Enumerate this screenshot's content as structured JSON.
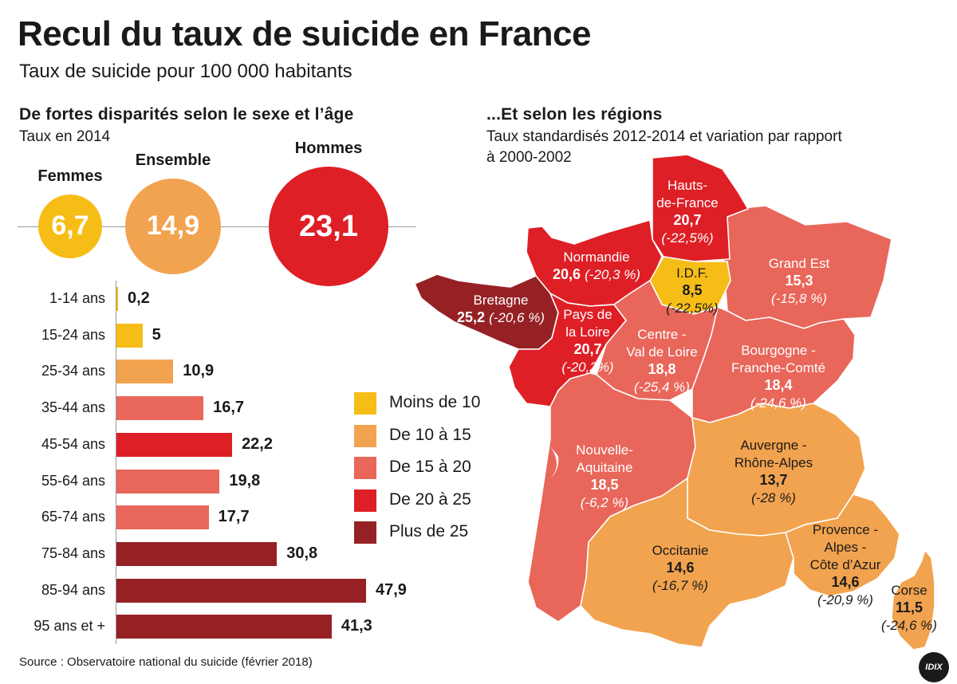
{
  "title": "Recul du taux de suicide en France",
  "subtitle": "Taux de suicide pour 100 000 habitants",
  "left_section": {
    "title": "De fortes disparités selon le sexe et l’âge",
    "subtitle": "Taux en 2014"
  },
  "right_section": {
    "title": "...Et selon les régions",
    "subtitle_line1": "Taux standardisés 2012-2014 et variation par rapport",
    "subtitle_line2": "à 2000-2002"
  },
  "source": "Source : Observatoire national du suicide (février 2018)",
  "logo_text": "IDIX",
  "colors": {
    "moins_10": "#f7bd17",
    "de_10_15": "#f2a34f",
    "de_15_20": "#e8665a",
    "de_20_25": "#de1f26",
    "plus_25": "#962124"
  },
  "legend": [
    {
      "label": "Moins de 10",
      "color": "#f7bd17"
    },
    {
      "label": "De 10 à 15",
      "color": "#f2a34f"
    },
    {
      "label": "De 15 à 20",
      "color": "#e8665a"
    },
    {
      "label": "De 20 à 25",
      "color": "#de1f26"
    },
    {
      "label": "Plus de 25",
      "color": "#962124"
    }
  ],
  "chart_data": [
    {
      "type": "bubble",
      "categories": [
        "Femmes",
        "Ensemble",
        "Hommes"
      ],
      "values": [
        6.7,
        14.9,
        23.1
      ],
      "labels": [
        "6,7",
        "14,9",
        "23,1"
      ],
      "colors": [
        "#f7bd17",
        "#f2a34f",
        "#de1f26"
      ]
    },
    {
      "type": "bar",
      "orientation": "horizontal",
      "categories": [
        "1-14 ans",
        "15-24 ans",
        "25-34 ans",
        "35-44 ans",
        "45-54 ans",
        "55-64 ans",
        "65-74 ans",
        "75-84 ans",
        "85-94 ans",
        "95 ans et +"
      ],
      "values": [
        0.2,
        5,
        10.9,
        16.7,
        22.2,
        19.8,
        17.7,
        30.8,
        47.9,
        41.3
      ],
      "labels": [
        "0,2",
        "5",
        "10,9",
        "16,7",
        "22,2",
        "19,8",
        "17,7",
        "30,8",
        "47,9",
        "41,3"
      ],
      "colors": [
        "#f7bd17",
        "#f7bd17",
        "#f2a34f",
        "#e8665a",
        "#de1f26",
        "#e8665a",
        "#e8665a",
        "#962124",
        "#962124",
        "#962124"
      ]
    },
    {
      "type": "choropleth",
      "regions": [
        {
          "name_lines": [
            "Hauts-",
            "de-France"
          ],
          "rate": 20.7,
          "rate_label": "20,7",
          "variation_label": "(-22,5%)",
          "color": "#de1f26"
        },
        {
          "name_lines": [
            "Normandie"
          ],
          "rate": 20.6,
          "rate_label": "20,6",
          "variation_label": "(-20,3 %)",
          "color": "#de1f26"
        },
        {
          "name_lines": [
            "I.D.F."
          ],
          "rate": 8.5,
          "rate_label": "8,5",
          "variation_label": "(-22,5%)",
          "color": "#f7bd17"
        },
        {
          "name_lines": [
            "Grand Est"
          ],
          "rate": 15.3,
          "rate_label": "15,3",
          "variation_label": "(-15,8 %)",
          "color": "#e8665a"
        },
        {
          "name_lines": [
            "Bretagne"
          ],
          "rate": 25.2,
          "rate_label": "25,2",
          "variation_label": "(-20,6 %)",
          "color": "#962124"
        },
        {
          "name_lines": [
            "Pays de",
            "la Loire"
          ],
          "rate": 20.7,
          "rate_label": "20,7",
          "variation_label": "(-20,2%)",
          "color": "#de1f26"
        },
        {
          "name_lines": [
            "Centre -",
            "Val de Loire"
          ],
          "rate": 18.8,
          "rate_label": "18,8",
          "variation_label": "(-25,4 %)",
          "color": "#e8665a"
        },
        {
          "name_lines": [
            "Bourgogne -",
            "Franche-Comté"
          ],
          "rate": 18.4,
          "rate_label": "18,4",
          "variation_label": "(-24,6 %)",
          "color": "#e8665a"
        },
        {
          "name_lines": [
            "Nouvelle-",
            "Aquitaine"
          ],
          "rate": 18.5,
          "rate_label": "18,5",
          "variation_label": "(-6,2 %)",
          "color": "#e8665a"
        },
        {
          "name_lines": [
            "Auvergne -",
            "Rhône-Alpes"
          ],
          "rate": 13.7,
          "rate_label": "13,7",
          "variation_label": "(-28 %)",
          "color": "#f2a34f"
        },
        {
          "name_lines": [
            "Occitanie"
          ],
          "rate": 14.6,
          "rate_label": "14,6",
          "variation_label": "(-16,7 %)",
          "color": "#f2a34f"
        },
        {
          "name_lines": [
            "Provence -",
            "Alpes -",
            "Côte d’Azur"
          ],
          "rate": 14.6,
          "rate_label": "14,6",
          "variation_label": "(-20,9 %)",
          "color": "#f2a34f"
        },
        {
          "name_lines": [
            "Corse"
          ],
          "rate": 11.5,
          "rate_label": "11,5",
          "variation_label": "(-24,6 %)",
          "color": "#f2a34f"
        }
      ]
    }
  ]
}
